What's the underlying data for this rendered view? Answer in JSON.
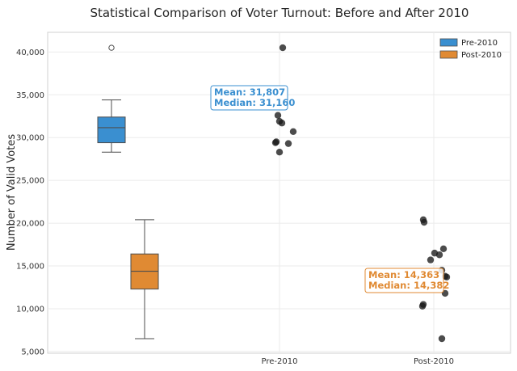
{
  "chart_data": {
    "type": "box",
    "title": "Statistical Comparison of Voter Turnout: Before and After 2010",
    "ylabel": "Number of Valid Votes",
    "ylim": [
      4800,
      42300
    ],
    "yticks": [
      5000,
      10000,
      15000,
      20000,
      25000,
      30000,
      35000,
      40000
    ],
    "ytick_labels": [
      "5,000",
      "10,000",
      "15,000",
      "20,000",
      "25,000",
      "30,000",
      "35,000",
      "40,000"
    ],
    "categories": [
      "Pre-2010",
      "Post-2010"
    ],
    "grid": true,
    "legend": {
      "placement": "top-right",
      "entries": [
        "Pre-2010",
        "Post-2010"
      ]
    },
    "series": [
      {
        "name": "Pre-2010",
        "color": "#3a8fd0",
        "box": {
          "whisker_low": 28300,
          "q1": 29400,
          "median": 31160,
          "q3": 32400,
          "whisker_high": 34400,
          "outliers": [
            40500
          ]
        },
        "points": [
          40500,
          32600,
          31900,
          31700,
          30700,
          29500,
          29400,
          29300,
          28300
        ],
        "annotation": {
          "mean_label": "Mean: 31,807",
          "median_label": "Median: 31,160"
        }
      },
      {
        "name": "Post-2010",
        "color": "#e08a33",
        "box": {
          "whisker_low": 6500,
          "q1": 12300,
          "median": 14382,
          "q3": 16400,
          "whisker_high": 20400,
          "outliers": []
        },
        "points": [
          20400,
          20100,
          17000,
          16500,
          16300,
          15700,
          14500,
          13800,
          13700,
          11800,
          10500,
          10300,
          6500
        ],
        "annotation": {
          "mean_label": "Mean: 14,363",
          "median_label": "Median: 14,382"
        }
      }
    ]
  }
}
